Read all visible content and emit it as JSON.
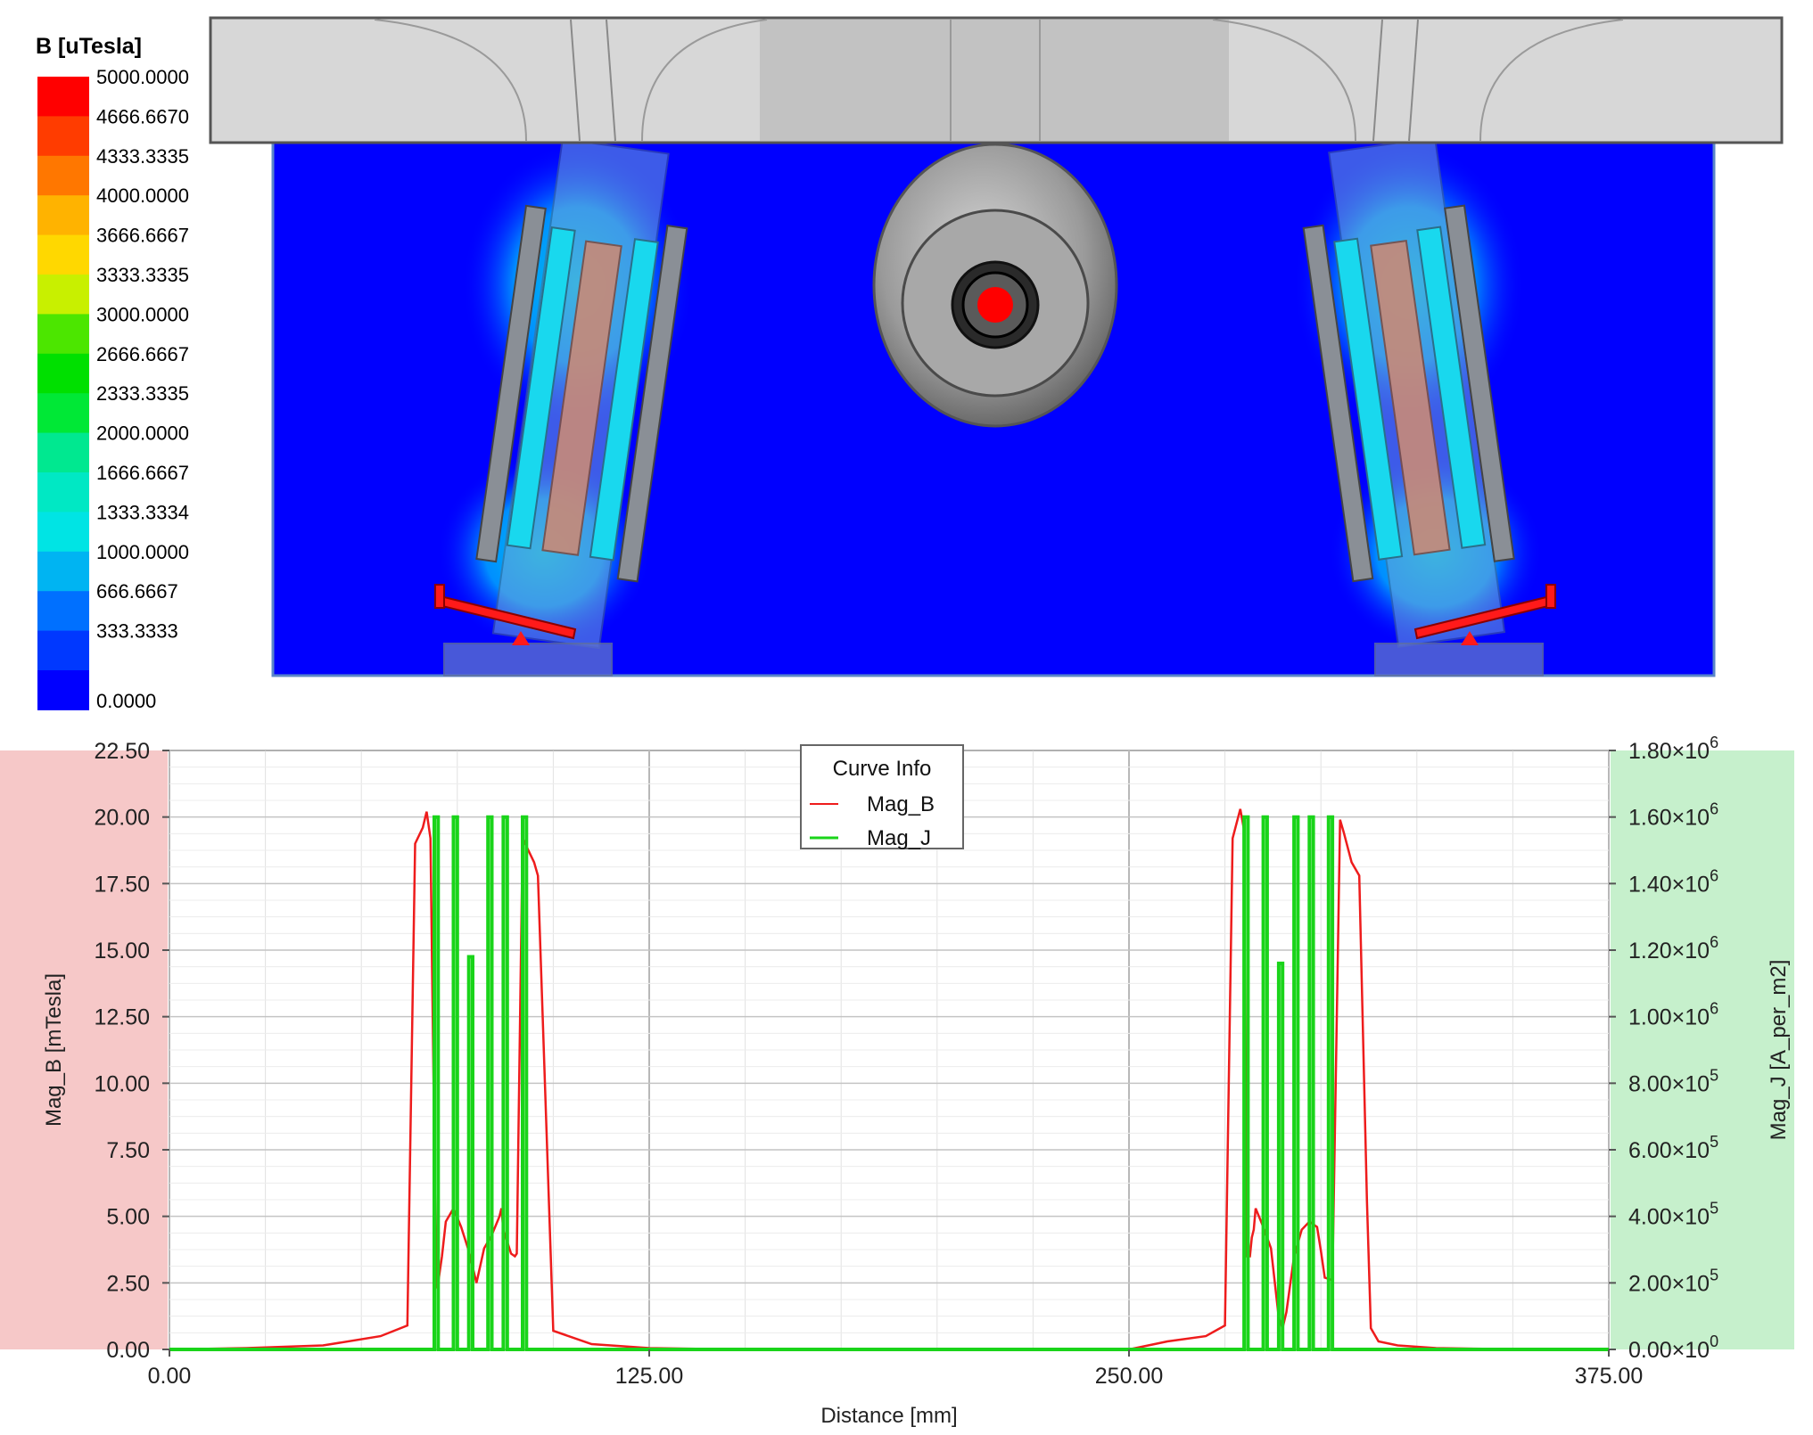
{
  "colorbar": {
    "title": "B [uTesla]",
    "levels": [
      "5000.0000",
      "4666.6670",
      "4333.3335",
      "4000.0000",
      "3666.6667",
      "3333.3335",
      "3000.0000",
      "2666.6667",
      "2333.3335",
      "2000.0000",
      "1666.6667",
      "1333.3334",
      "1000.0000",
      "666.6667",
      "333.3333",
      "0.0000"
    ],
    "colors": [
      "#ff0000",
      "#ff3c00",
      "#ff7700",
      "#ffb300",
      "#ffd800",
      "#c8f000",
      "#4ce600",
      "#00e000",
      "#00e836",
      "#00e890",
      "#00e8c4",
      "#00e4e4",
      "#00b4f2",
      "#0070ff",
      "#0038ff",
      "#0000ff"
    ]
  },
  "chart_data": {
    "type": "line",
    "xlabel": "Distance [mm]",
    "ylabel_left": "Mag_B [mTesla]",
    "ylabel_right": "Mag_J [A_per_m2]",
    "xlim": [
      0,
      375
    ],
    "ylim_left": [
      0,
      22.5
    ],
    "ylim_right": [
      0,
      1800000
    ],
    "x_ticks": [
      "0.00",
      "125.00",
      "250.00",
      "375.00"
    ],
    "y_left_ticks": [
      "0.00",
      "2.50",
      "5.00",
      "7.50",
      "10.00",
      "12.50",
      "15.00",
      "17.50",
      "20.00",
      "22.50"
    ],
    "y_right_ticks": [
      {
        "mant": "0.00",
        "exp": "0"
      },
      {
        "mant": "2.00",
        "exp": "5"
      },
      {
        "mant": "4.00",
        "exp": "5"
      },
      {
        "mant": "6.00",
        "exp": "5"
      },
      {
        "mant": "8.00",
        "exp": "5"
      },
      {
        "mant": "1.00",
        "exp": "6"
      },
      {
        "mant": "1.20",
        "exp": "6"
      },
      {
        "mant": "1.40",
        "exp": "6"
      },
      {
        "mant": "1.60",
        "exp": "6"
      },
      {
        "mant": "1.80",
        "exp": "6"
      }
    ],
    "legend": {
      "title": "Curve Info",
      "position": "top-center"
    },
    "grid": true,
    "series": [
      {
        "name": "Mag_B",
        "axis": "left",
        "color": "#ee1c1c",
        "x": [
          0,
          20,
          40,
          55,
          62,
          64,
          66,
          67,
          68,
          69.5,
          70,
          71,
          72,
          74,
          76,
          78,
          80,
          82,
          84,
          86,
          86.5,
          87,
          89,
          90,
          90.5,
          92,
          95,
          96,
          100,
          110,
          125,
          150,
          200,
          250,
          260,
          270,
          275,
          277,
          279,
          280,
          280.5,
          281.5,
          282,
          282.5,
          283,
          285,
          287,
          289,
          290,
          291,
          293,
          295,
          297,
          299,
          300,
          301,
          303,
          305,
          306,
          308,
          310,
          312,
          313,
          315,
          320,
          330,
          345,
          375
        ],
        "y": [
          0,
          0.05,
          0.15,
          0.5,
          0.9,
          19,
          19.6,
          20.2,
          19.2,
          2.3,
          2.5,
          3.5,
          4.8,
          5.3,
          4.6,
          3.7,
          2.5,
          3.8,
          4.3,
          5.0,
          5.3,
          4.5,
          3.6,
          3.5,
          3.6,
          19.2,
          18.3,
          17.8,
          0.7,
          0.2,
          0.05,
          0,
          0,
          0,
          0.3,
          0.5,
          0.9,
          19.2,
          20.3,
          19.5,
          3.5,
          3.5,
          4.2,
          4.5,
          5.3,
          4.6,
          3.8,
          1.2,
          0.8,
          1.4,
          3.5,
          4.5,
          4.8,
          4.6,
          3.7,
          2.7,
          2.6,
          19.9,
          19.4,
          18.3,
          17.8,
          5.6,
          0.8,
          0.3,
          0.15,
          0.05,
          0.02,
          0
        ]
      },
      {
        "name": "Mag_J",
        "axis": "right",
        "color": "#1ad41a",
        "x": [
          0,
          69,
          69,
          70,
          70,
          74,
          74,
          75,
          75,
          78,
          78,
          79,
          79,
          83,
          83,
          84,
          84,
          87,
          87,
          88,
          88,
          92,
          92,
          93,
          93,
          280,
          280,
          281,
          281,
          285,
          285,
          286,
          286,
          289,
          289,
          290,
          290,
          293,
          293,
          294,
          294,
          297,
          297,
          298,
          298,
          302,
          302,
          303,
          303,
          375
        ],
        "y": [
          0,
          0,
          1600000,
          1600000,
          0,
          0,
          1600000,
          1600000,
          0,
          0,
          1180000,
          1180000,
          0,
          0,
          1600000,
          1600000,
          0,
          0,
          1600000,
          1600000,
          0,
          0,
          1600000,
          1600000,
          0,
          0,
          1600000,
          1600000,
          0,
          0,
          1600000,
          1600000,
          0,
          0,
          1160000,
          1160000,
          0,
          0,
          1600000,
          1600000,
          0,
          0,
          1600000,
          1600000,
          0,
          0,
          1600000,
          1600000,
          0,
          0
        ]
      }
    ]
  }
}
